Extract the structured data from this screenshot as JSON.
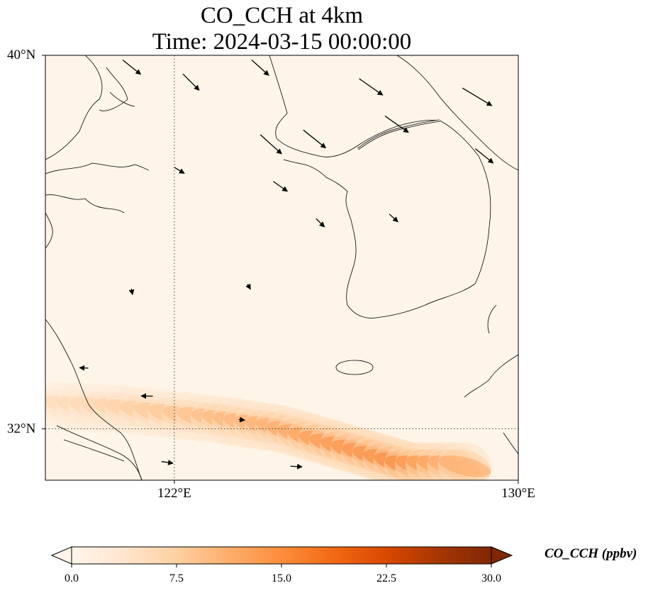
{
  "title": {
    "line1": "CO_CCH at 4km",
    "line2": "Time: 2024-03-15 00:00:00"
  },
  "map": {
    "lon_range": [
      119,
      130
    ],
    "lat_range": [
      30.9,
      40
    ],
    "lat_ticks": [
      {
        "value": 40,
        "label": "40°N"
      },
      {
        "value": 32,
        "label": "32°N"
      }
    ],
    "lon_ticks": [
      {
        "value": 122,
        "label": "122°E"
      },
      {
        "value": 130,
        "label": "130°E"
      }
    ],
    "gridlines": {
      "lon": [
        122
      ],
      "lat": [
        32
      ],
      "style": "dotted"
    },
    "background_color": "#fef4e7",
    "coastline_color": "#000000"
  },
  "colorbar": {
    "label": "CO_CCH (ppbv)",
    "min": 0,
    "max": 30,
    "ticks": [
      "0.0",
      "7.5",
      "15.0",
      "22.5",
      "30.0"
    ],
    "colors": [
      "#fff5eb",
      "#fee6ce",
      "#fdd0a2",
      "#fdae6b",
      "#fd8d3c",
      "#f16913",
      "#d94801",
      "#a63603",
      "#7f2704"
    ],
    "extend": "both",
    "cmap": "Oranges-Red"
  },
  "chart_data": {
    "type": "heatmap",
    "variable": "CO_CCH",
    "units": "ppbv",
    "level": "4km",
    "time": "2024-03-15 00:00:00",
    "background_value": 1.0,
    "plume_band": {
      "description": "elevated concentration band oriented WNW–ESE across southern domain",
      "points": [
        {
          "lon": 119.3,
          "lat": 32.5,
          "value": 6
        },
        {
          "lon": 121.0,
          "lat": 32.4,
          "value": 8
        },
        {
          "lon": 123.0,
          "lat": 32.2,
          "value": 11
        },
        {
          "lon": 124.5,
          "lat": 32.0,
          "value": 13
        },
        {
          "lon": 126.0,
          "lat": 31.6,
          "value": 16
        },
        {
          "lon": 127.5,
          "lat": 31.2,
          "value": 17
        },
        {
          "lon": 129.0,
          "lat": 31.2,
          "value": 12
        }
      ]
    },
    "wind_vectors": [
      {
        "lon": 120.8,
        "lat": 39.9,
        "u": 1,
        "v": -0.8,
        "speed": 4
      },
      {
        "lon": 122.2,
        "lat": 39.6,
        "u": 1,
        "v": -1,
        "speed": 4
      },
      {
        "lon": 123.8,
        "lat": 39.9,
        "u": 1,
        "v": -0.9,
        "speed": 4
      },
      {
        "lon": 126.3,
        "lat": 39.5,
        "u": 1,
        "v": -0.7,
        "speed": 5
      },
      {
        "lon": 128.7,
        "lat": 39.3,
        "u": 1,
        "v": -0.6,
        "speed": 6
      },
      {
        "lon": 124.0,
        "lat": 38.3,
        "u": 1,
        "v": -0.9,
        "speed": 5
      },
      {
        "lon": 125.0,
        "lat": 38.4,
        "u": 1,
        "v": -0.8,
        "speed": 5
      },
      {
        "lon": 126.9,
        "lat": 38.7,
        "u": 1,
        "v": -0.7,
        "speed": 5
      },
      {
        "lon": 129.0,
        "lat": 38.0,
        "u": 1,
        "v": -0.8,
        "speed": 4
      },
      {
        "lon": 122.0,
        "lat": 37.6,
        "u": 1,
        "v": -0.6,
        "speed": 2
      },
      {
        "lon": 124.3,
        "lat": 37.3,
        "u": 1,
        "v": -0.7,
        "speed": 3
      },
      {
        "lon": 125.3,
        "lat": 36.5,
        "u": 1,
        "v": -1,
        "speed": 2
      },
      {
        "lon": 127.0,
        "lat": 36.6,
        "u": 1,
        "v": -0.9,
        "speed": 2
      },
      {
        "lon": 121.0,
        "lat": 35.0,
        "u": 0.2,
        "v": -1,
        "speed": 1
      },
      {
        "lon": 123.7,
        "lat": 35.1,
        "u": 0.6,
        "v": -1,
        "speed": 1
      },
      {
        "lon": 120.0,
        "lat": 33.3,
        "u": -1,
        "v": 0.05,
        "speed": 1.5
      },
      {
        "lon": 121.5,
        "lat": 32.7,
        "u": -1,
        "v": 0.02,
        "speed": 2
      },
      {
        "lon": 123.5,
        "lat": 32.2,
        "u": 1,
        "v": -0.1,
        "speed": 1
      },
      {
        "lon": 121.7,
        "lat": 31.3,
        "u": 1,
        "v": -0.15,
        "speed": 2
      },
      {
        "lon": 124.7,
        "lat": 31.2,
        "u": 1,
        "v": -0.05,
        "speed": 2
      }
    ]
  }
}
